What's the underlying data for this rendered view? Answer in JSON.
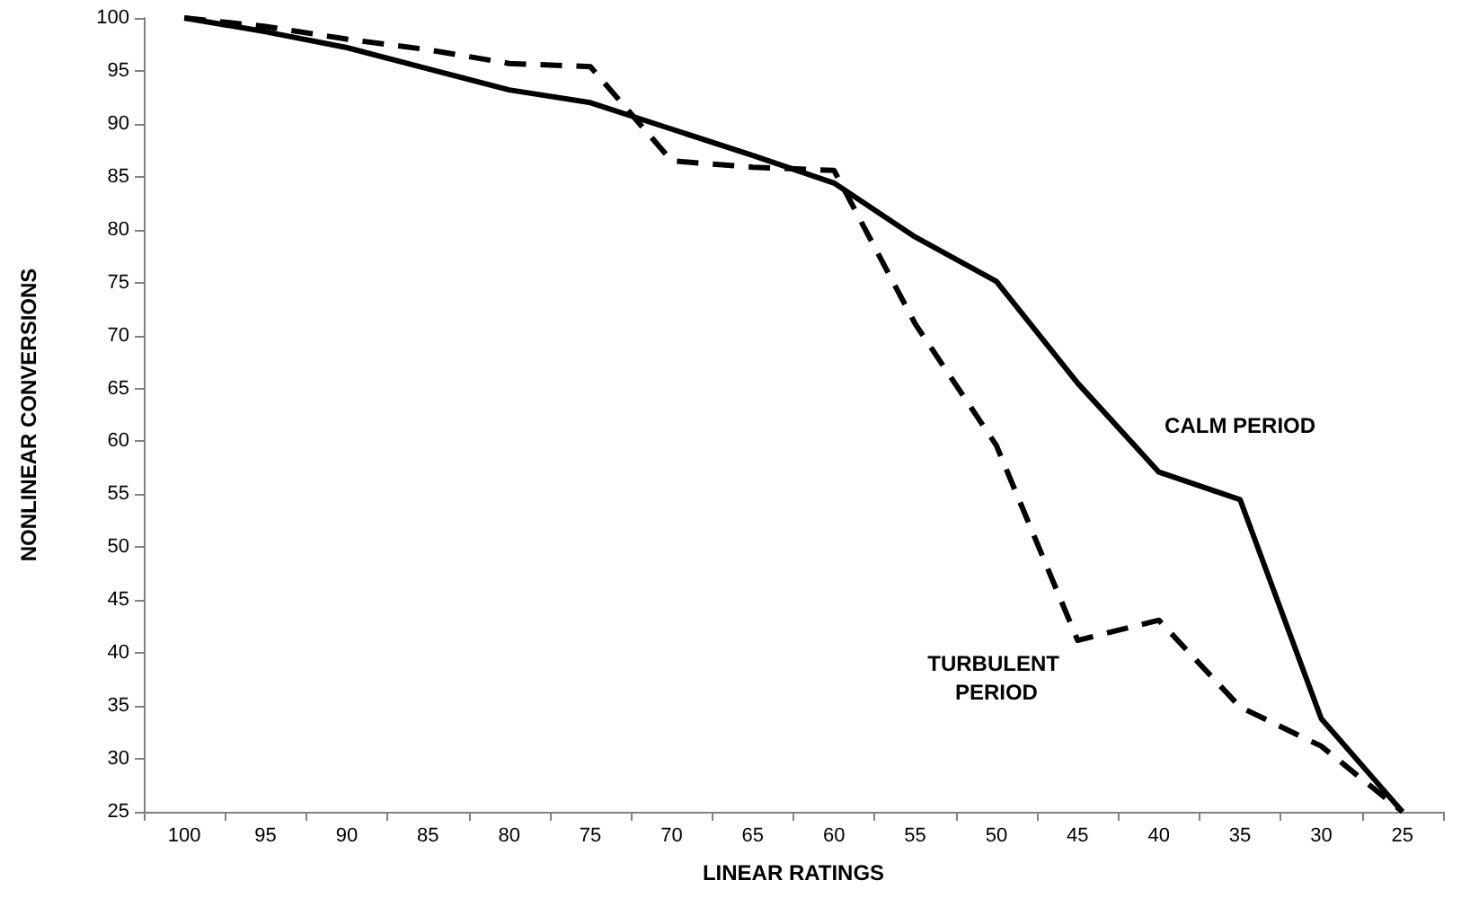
{
  "chart_data": {
    "type": "line",
    "xlabel": "LINEAR RATINGS",
    "ylabel": "NONLINEAR CONVERSIONS",
    "categories": [
      "100",
      "95",
      "90",
      "85",
      "80",
      "75",
      "70",
      "65",
      "60",
      "55",
      "50",
      "45",
      "40",
      "35",
      "30",
      "25"
    ],
    "series": [
      {
        "name": "CALM PERIOD",
        "color": "#000000",
        "line_style": "solid",
        "values": [
          100,
          98.7,
          97.2,
          95.2,
          93.2,
          92.0,
          89.5,
          87.0,
          84.4,
          79.3,
          75.1,
          65.5,
          57.1,
          54.5,
          33.8,
          25
        ]
      },
      {
        "name": "TURBULENT PERIOD",
        "color": "#000000",
        "line_style": "dashed",
        "values": [
          100,
          99.2,
          98.0,
          97.0,
          95.7,
          95.4,
          86.5,
          85.9,
          85.6,
          71.1,
          59.6,
          41.2,
          43.1,
          34.9,
          31.2,
          25
        ]
      }
    ],
    "ylim": [
      25,
      100
    ],
    "yticks": [
      25,
      30,
      35,
      40,
      45,
      50,
      55,
      60,
      65,
      70,
      75,
      80,
      85,
      90,
      95,
      100
    ],
    "grid": false,
    "marker": "none"
  }
}
